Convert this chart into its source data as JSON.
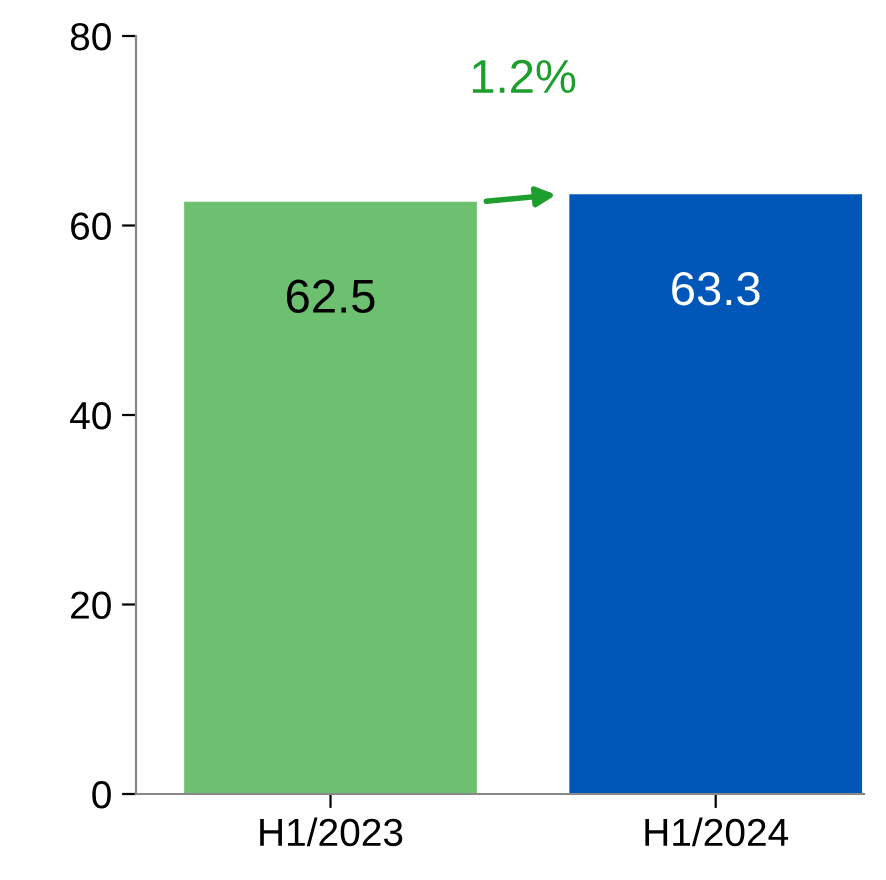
{
  "chart_data": {
    "type": "bar",
    "categories": [
      "H1/2023",
      "H1/2024"
    ],
    "values": [
      62.5,
      63.3
    ],
    "colors": [
      "#6cc070",
      "#0057b8"
    ],
    "ylim": [
      0,
      80
    ],
    "yticks": [
      0,
      20,
      40,
      60,
      80
    ],
    "data_labels": true,
    "grid": false,
    "legend": false,
    "annotations": [
      "1.2%"
    ]
  }
}
